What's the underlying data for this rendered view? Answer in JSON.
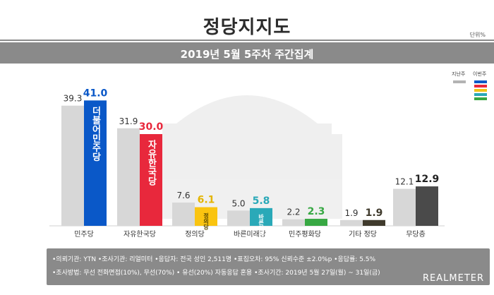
{
  "header": {
    "title": "정당지지도",
    "unit": "단위%",
    "subtitle": "2019년 5월 5주차 주간집계"
  },
  "legend": {
    "prev_label": "지난주",
    "curr_label": "이번주",
    "prev_color": "#b3b3b3",
    "curr_colors": [
      "#0a58c8",
      "#e8283c",
      "#f2c417",
      "#2aa9b8",
      "#37a843"
    ]
  },
  "chart_data": {
    "type": "bar",
    "categories": [
      "민주당",
      "자유한국당",
      "정의당",
      "바른미래당",
      "민주평화당",
      "기타 정당",
      "무당층"
    ],
    "series": [
      {
        "name": "지난주",
        "values": [
          39.3,
          31.9,
          7.6,
          5.0,
          2.2,
          1.9,
          12.1
        ]
      },
      {
        "name": "이번주",
        "values": [
          41.0,
          30.0,
          6.1,
          5.8,
          2.3,
          1.9,
          12.9
        ]
      }
    ],
    "current_colors": [
      "#0a58c8",
      "#e8283c",
      "#fac410",
      "#2aa9b8",
      "#37a843",
      "#3f3a2c",
      "#4a4a4a"
    ],
    "current_label_colors": [
      "#0a58c8",
      "#e8283c",
      "#e3b400",
      "#2aa9b8",
      "#37a843",
      "#3f3a2c",
      "#222222"
    ],
    "bar_logos": [
      "더불어민주당",
      "자유한국당",
      "정의당",
      "바른미래당",
      "",
      "",
      ""
    ],
    "ylim": [
      0,
      45
    ]
  },
  "footer": {
    "line1": "•의뢰기관: YTN  •조사기관: 리얼미터  •응답자: 전국 성인 2,511명  •표집오차: 95% 신뢰수준 ±2.0%p  •응답률: 5.5%",
    "line2": "•조사방법: 무선 전화면접(10%), 무선(70%) • 유선(20%) 자동응답 혼용  •조사기간: 2019년 5월 27일(월) ~ 31일(금)",
    "brand": "REALMETER"
  }
}
